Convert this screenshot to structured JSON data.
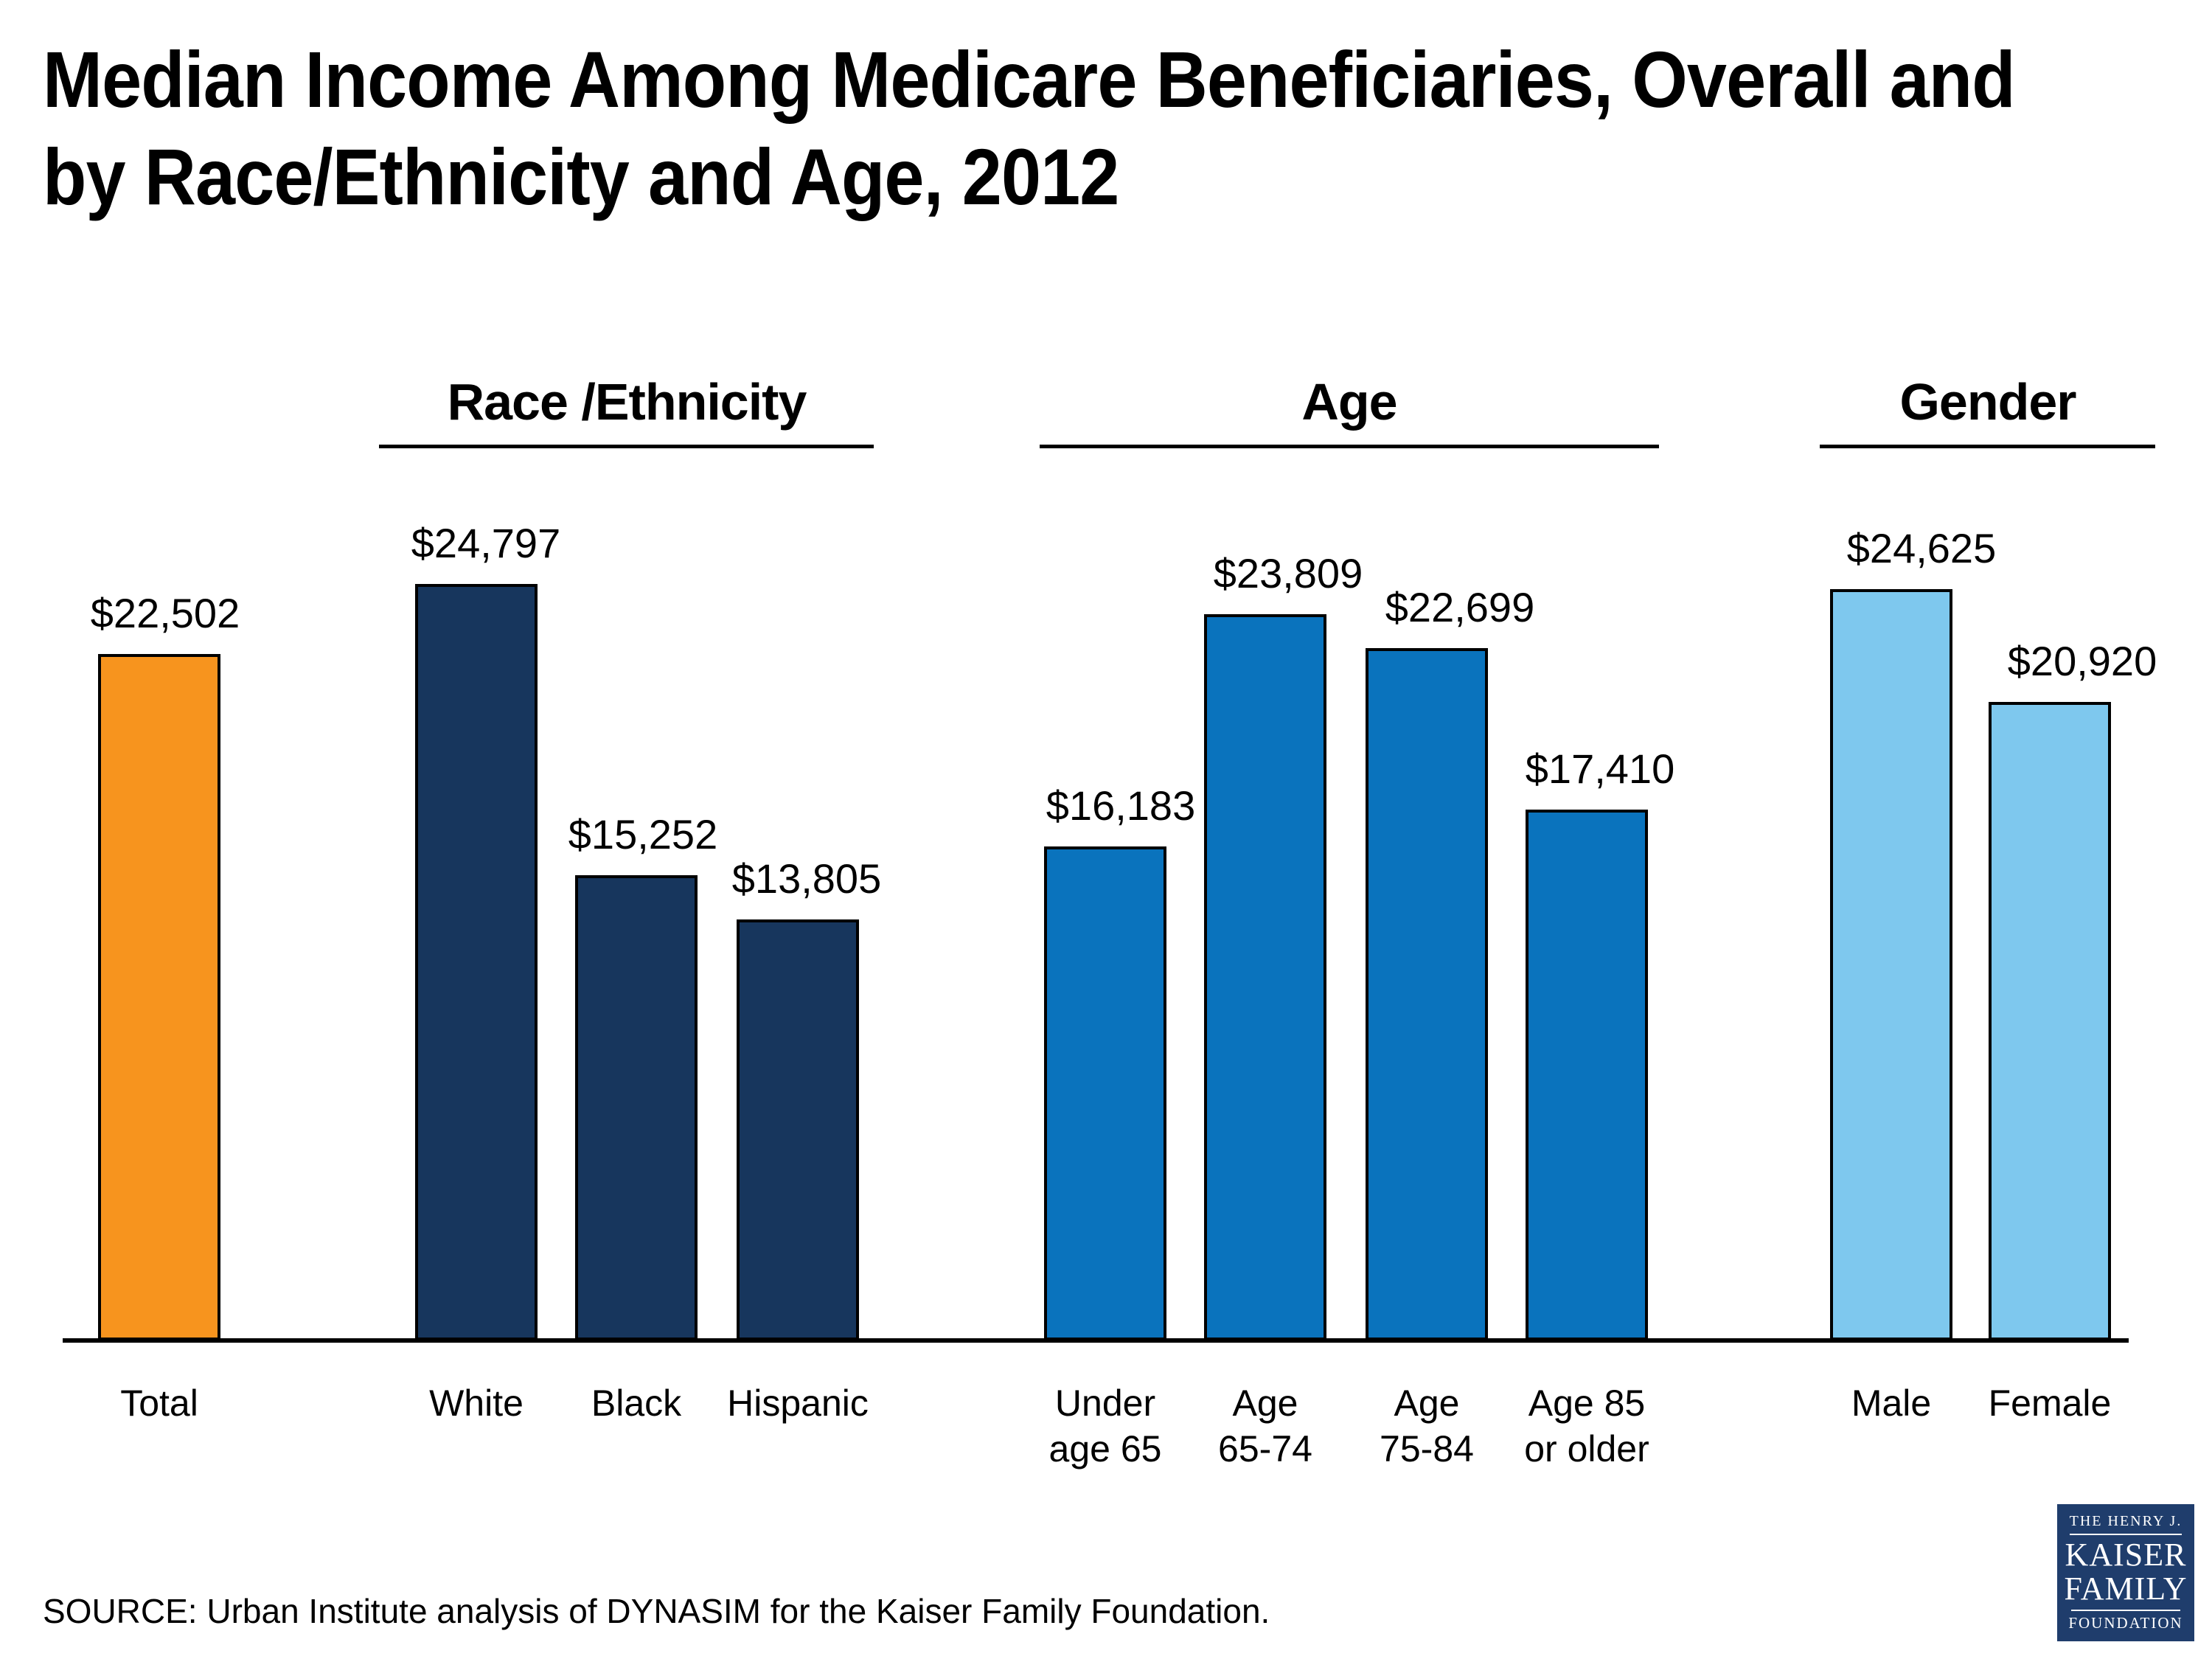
{
  "title": "Median Income Among Medicare Beneficiaries, Overall and by Race/Ethnicity and Age, 2012",
  "title_lines": [
    "Median Income Among Medicare Beneficiaries, Overall and",
    "by Race/Ethnicity and Age, 2012"
  ],
  "source": "SOURCE: Urban Institute analysis of DYNASIM for the Kaiser Family Foundation.",
  "logo": {
    "line1": "THE HENRY J.",
    "line2": "KAISER",
    "line3": "FAMILY",
    "line4": "FOUNDATION",
    "bg_color": "#1F3D6C"
  },
  "colors": {
    "total": "#F7941E",
    "race_ethnicity": "#17365D",
    "age": "#0A73BD",
    "gender": "#7EC8EE",
    "bar_outline": "#000000"
  },
  "chart_data": {
    "type": "bar",
    "title": "Median Income Among Medicare Beneficiaries, Overall and by Race/Ethnicity and Age, 2012",
    "unit": "USD",
    "y_axis_visible": false,
    "gridlines": false,
    "ylim": [
      0,
      26000
    ],
    "value_label_position": "above-bar",
    "categories": [
      "Total",
      "White",
      "Black",
      "Hispanic",
      "Under age 65",
      "Age 65-74",
      "Age 75-84",
      "Age 85 or older",
      "Male",
      "Female"
    ],
    "values": [
      22502,
      24797,
      15252,
      13805,
      16183,
      23809,
      22699,
      17410,
      24625,
      20920
    ],
    "value_labels": [
      "$22,502",
      "$24,797",
      "$15,252",
      "$13,805",
      "$16,183",
      "$23,809",
      "$22,699",
      "$17,410",
      "$24,625",
      "$20,920"
    ],
    "groups": [
      {
        "header": "",
        "color": "#F7941E",
        "bars": [
          {
            "category_lines": [
              "Total"
            ],
            "value": 22502,
            "label": "$22,502"
          }
        ]
      },
      {
        "header": "Race /Ethnicity",
        "color": "#17365D",
        "bars": [
          {
            "category_lines": [
              "White"
            ],
            "value": 24797,
            "label": "$24,797"
          },
          {
            "category_lines": [
              "Black"
            ],
            "value": 15252,
            "label": "$15,252"
          },
          {
            "category_lines": [
              "Hispanic"
            ],
            "value": 13805,
            "label": "$13,805"
          }
        ]
      },
      {
        "header": "Age",
        "color": "#0A73BD",
        "bars": [
          {
            "category_lines": [
              "Under",
              "age 65"
            ],
            "value": 16183,
            "label": "$16,183"
          },
          {
            "category_lines": [
              "Age",
              "65-74"
            ],
            "value": 23809,
            "label": "$23,809"
          },
          {
            "category_lines": [
              "Age",
              "75-84"
            ],
            "value": 22699,
            "label": "$22,699"
          },
          {
            "category_lines": [
              "Age 85",
              "or older"
            ],
            "value": 17410,
            "label": "$17,410"
          }
        ]
      },
      {
        "header": "Gender",
        "color": "#7EC8EE",
        "bars": [
          {
            "category_lines": [
              "Male"
            ],
            "value": 24625,
            "label": "$24,625"
          },
          {
            "category_lines": [
              "Female"
            ],
            "value": 20920,
            "label": "$20,920"
          }
        ]
      }
    ]
  }
}
